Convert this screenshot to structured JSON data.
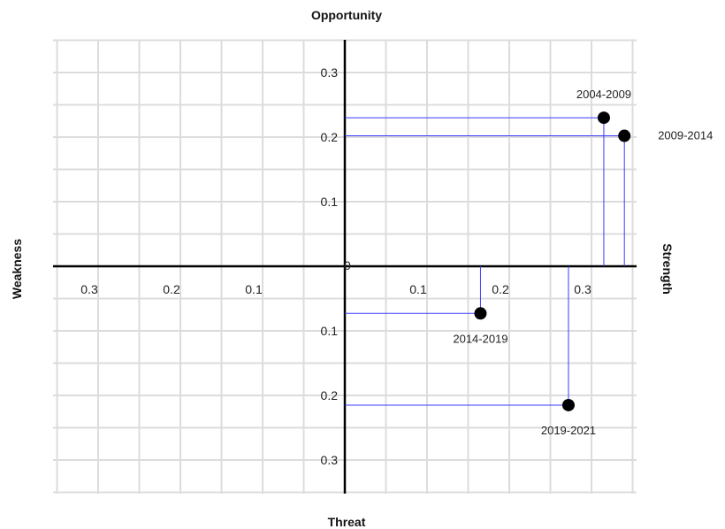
{
  "chart_data": {
    "type": "scatter",
    "quadrant_labels": {
      "top": "Opportunity",
      "bottom": "Threat",
      "left": "Weakness",
      "right": "Strength"
    },
    "origin_label": "0",
    "x_ticks": [
      {
        "value": -0.3,
        "label": "0.3"
      },
      {
        "value": -0.2,
        "label": "0.2"
      },
      {
        "value": -0.1,
        "label": "0.1"
      },
      {
        "value": 0.1,
        "label": "0.1"
      },
      {
        "value": 0.2,
        "label": "0.2"
      },
      {
        "value": 0.3,
        "label": "0.3"
      }
    ],
    "y_ticks": [
      {
        "value": 0.3,
        "label": "0.3"
      },
      {
        "value": 0.2,
        "label": "0.2"
      },
      {
        "value": 0.1,
        "label": "0.1"
      },
      {
        "value": -0.1,
        "label": "0.1"
      },
      {
        "value": -0.2,
        "label": "0.2"
      },
      {
        "value": -0.3,
        "label": "0.3"
      }
    ],
    "xlim": [
      -0.36,
      0.36
    ],
    "ylim": [
      -0.35,
      0.35
    ],
    "grid": true,
    "points": [
      {
        "label": "2004-2009",
        "x": 0.315,
        "y": 0.23
      },
      {
        "label": "2009-2014",
        "x": 0.34,
        "y": 0.202
      },
      {
        "label": "2014-2019",
        "x": 0.165,
        "y": -0.073
      },
      {
        "label": "2019-2021",
        "x": 0.272,
        "y": -0.215
      }
    ],
    "colors": {
      "point": "#000000",
      "guide_line": "#3a3aff",
      "grid": "#dcdcdc",
      "axis": "#000000"
    }
  }
}
